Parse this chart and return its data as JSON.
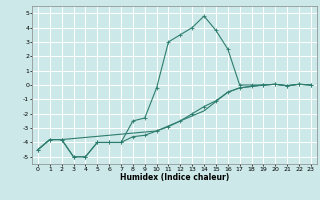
{
  "xlabel": "Humidex (Indice chaleur)",
  "background_color": "#cce8e8",
  "grid_color": "#ffffff",
  "line_color": "#2d7d6e",
  "xlim": [
    -0.5,
    23.5
  ],
  "ylim": [
    -5.5,
    5.5
  ],
  "yticks": [
    -5,
    -4,
    -3,
    -2,
    -1,
    0,
    1,
    2,
    3,
    4,
    5
  ],
  "xticks": [
    0,
    1,
    2,
    3,
    4,
    5,
    6,
    7,
    8,
    9,
    10,
    11,
    12,
    13,
    14,
    15,
    16,
    17,
    18,
    19,
    20,
    21,
    22,
    23
  ],
  "line1_x": [
    0,
    1,
    2,
    3,
    4,
    5,
    6,
    7,
    8,
    9,
    10,
    11,
    12,
    13,
    14,
    15,
    16,
    17,
    18,
    19,
    20,
    21,
    22,
    23
  ],
  "line1_y": [
    -4.5,
    -3.8,
    -3.8,
    -5.0,
    -5.0,
    -4.0,
    -4.0,
    -4.0,
    -2.5,
    -2.3,
    -0.2,
    3.0,
    3.5,
    4.0,
    4.8,
    3.8,
    2.5,
    0.0,
    0.0,
    0.0,
    0.05,
    -0.05,
    0.05,
    0.0
  ],
  "line2_x": [
    0,
    1,
    2,
    3,
    4,
    5,
    6,
    7,
    8,
    9,
    10,
    11,
    12,
    13,
    14,
    15,
    16,
    17,
    18,
    19,
    20,
    21,
    22,
    23
  ],
  "line2_y": [
    -4.5,
    -3.8,
    -3.8,
    -5.0,
    -5.0,
    -4.0,
    -4.0,
    -4.0,
    -3.6,
    -3.5,
    -3.2,
    -2.9,
    -2.5,
    -2.0,
    -1.5,
    -1.1,
    -0.5,
    -0.2,
    -0.1,
    0.0,
    0.05,
    -0.05,
    0.05,
    0.0
  ],
  "line3_x": [
    0,
    1,
    2,
    10,
    14,
    16,
    17,
    18,
    19,
    20,
    21,
    22,
    23
  ],
  "line3_y": [
    -4.5,
    -3.8,
    -3.8,
    -3.2,
    -1.8,
    -0.5,
    -0.2,
    -0.1,
    0.0,
    0.05,
    -0.05,
    0.05,
    0.0
  ]
}
